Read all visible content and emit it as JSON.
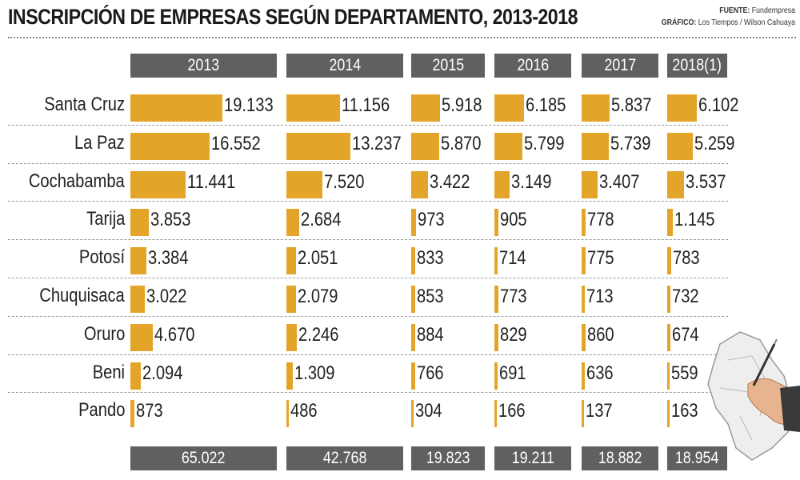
{
  "header": {
    "title": "INSCRIPCIÓN DE EMPRESAS SEGÚN DEPARTAMENTO, 2013-2018",
    "source_label": "FUENTE:",
    "source_value": "Fundempresa",
    "graphic_label": "GRÁFICO:",
    "graphic_value": "Los Tiempos / Wilson Cahuaya"
  },
  "colors": {
    "bar": "#e3a529",
    "header_bg": "#606060",
    "header_text": "#ffffff"
  },
  "chart_data": {
    "type": "bar",
    "title": "INSCRIPCIÓN DE EMPRESAS SEGÚN DEPARTAMENTO, 2013-2018",
    "categories": [
      "Santa Cruz",
      "La Paz",
      "Cochabamba",
      "Tarija",
      "Potosí",
      "Chuquisaca",
      "Oruro",
      "Beni",
      "Pando"
    ],
    "series": [
      {
        "name": "2013",
        "values": [
          19133,
          16552,
          11441,
          3853,
          3384,
          3022,
          4670,
          2094,
          873
        ],
        "labels": [
          "19.133",
          "16.552",
          "11.441",
          "3.853",
          "3.384",
          "3.022",
          "4.670",
          "2.094",
          "873"
        ],
        "total": "65.022"
      },
      {
        "name": "2014",
        "values": [
          11156,
          13237,
          7520,
          2684,
          2051,
          2079,
          2246,
          1309,
          486
        ],
        "labels": [
          "11.156",
          "13.237",
          "7.520",
          "2.684",
          "2.051",
          "2.079",
          "2.246",
          "1.309",
          "486"
        ],
        "total": "42.768"
      },
      {
        "name": "2015",
        "values": [
          5918,
          5870,
          3422,
          973,
          833,
          853,
          884,
          766,
          304
        ],
        "labels": [
          "5.918",
          "5.870",
          "3.422",
          "973",
          "833",
          "853",
          "884",
          "766",
          "304"
        ],
        "total": "19.823"
      },
      {
        "name": "2016",
        "values": [
          6185,
          5799,
          3149,
          905,
          714,
          773,
          829,
          691,
          166
        ],
        "labels": [
          "6.185",
          "5.799",
          "3.149",
          "905",
          "714",
          "773",
          "829",
          "691",
          "166"
        ],
        "total": "19.211"
      },
      {
        "name": "2017",
        "values": [
          5837,
          5739,
          3407,
          778,
          775,
          713,
          860,
          636,
          137
        ],
        "labels": [
          "5.837",
          "5.739",
          "3.407",
          "778",
          "775",
          "713",
          "860",
          "636",
          "137"
        ],
        "total": "18.882"
      },
      {
        "name": "2018(1)",
        "values": [
          6102,
          5259,
          3537,
          1145,
          783,
          732,
          674,
          559,
          163
        ],
        "labels": [
          "6.102",
          "5.259",
          "3.537",
          "1.145",
          "783",
          "732",
          "674",
          "559",
          "163"
        ],
        "total": "18.954"
      }
    ],
    "legend": "none",
    "grid": false
  }
}
